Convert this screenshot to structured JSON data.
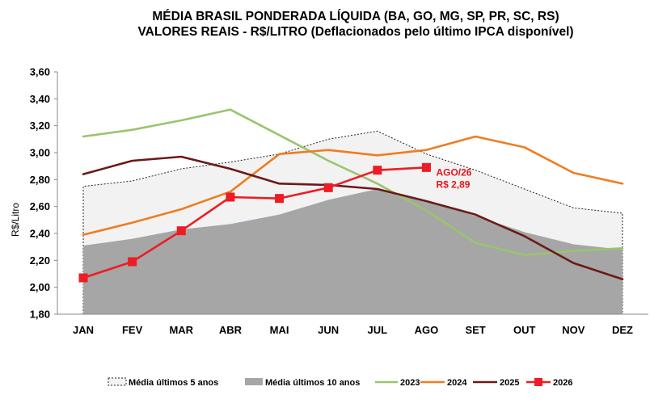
{
  "chart_data": {
    "type": "line",
    "title_lines": [
      "MÉDIA BRASIL PONDERADA LÍQUIDA (BA, GO, MG, SP, PR, SC, RS)",
      "VALORES REAIS - R$/LITRO (Deflacionados  pelo último IPCA disponível)"
    ],
    "ylabel": "R$/Litro",
    "ylim": [
      1.8,
      3.6
    ],
    "ytick_labels": [
      "1,80",
      "2,00",
      "2,20",
      "2,40",
      "2,60",
      "2,80",
      "3,00",
      "3,20",
      "3,40",
      "3,60"
    ],
    "categories": [
      "JAN",
      "FEV",
      "MAR",
      "ABR",
      "MAI",
      "JUN",
      "JUL",
      "AGO",
      "SET",
      "OUT",
      "NOV",
      "DEZ"
    ],
    "series": [
      {
        "name": "Média últimos 5 anos",
        "kind": "area-outline",
        "color": "#f2f2f2",
        "values": [
          2.75,
          2.79,
          2.88,
          2.93,
          2.99,
          3.1,
          3.16,
          2.99,
          2.87,
          2.73,
          2.59,
          2.55
        ]
      },
      {
        "name": "Média últimos 10 anos",
        "kind": "area",
        "color": "#a6a6a6",
        "values": [
          2.31,
          2.36,
          2.43,
          2.47,
          2.54,
          2.65,
          2.73,
          2.64,
          2.53,
          2.41,
          2.32,
          2.28
        ]
      },
      {
        "name": "2023",
        "kind": "line",
        "color": "#9bc46e",
        "values": [
          3.12,
          3.17,
          3.24,
          3.32,
          3.13,
          2.94,
          2.77,
          2.57,
          2.33,
          2.24,
          2.27,
          2.29
        ]
      },
      {
        "name": "2024",
        "kind": "line",
        "color": "#ee7d22",
        "values": [
          2.39,
          2.48,
          2.58,
          2.71,
          2.99,
          3.02,
          2.98,
          3.02,
          3.12,
          3.04,
          2.85,
          2.77
        ]
      },
      {
        "name": "2025",
        "kind": "line",
        "color": "#6b1a18",
        "values": [
          2.84,
          2.94,
          2.97,
          2.88,
          2.77,
          2.76,
          2.73,
          2.64,
          2.54,
          2.38,
          2.18,
          2.06
        ]
      },
      {
        "name": "2026",
        "kind": "line-markers",
        "color": "#ee1c24",
        "values": [
          2.07,
          2.19,
          2.42,
          2.67,
          2.66,
          2.74,
          2.87,
          2.89,
          null,
          null,
          null,
          null
        ]
      }
    ],
    "annotation": {
      "lines": [
        "AGO/26",
        "R$ 2,89"
      ],
      "color": "#ee1c24"
    },
    "grid": false,
    "legend_position": "bottom"
  }
}
